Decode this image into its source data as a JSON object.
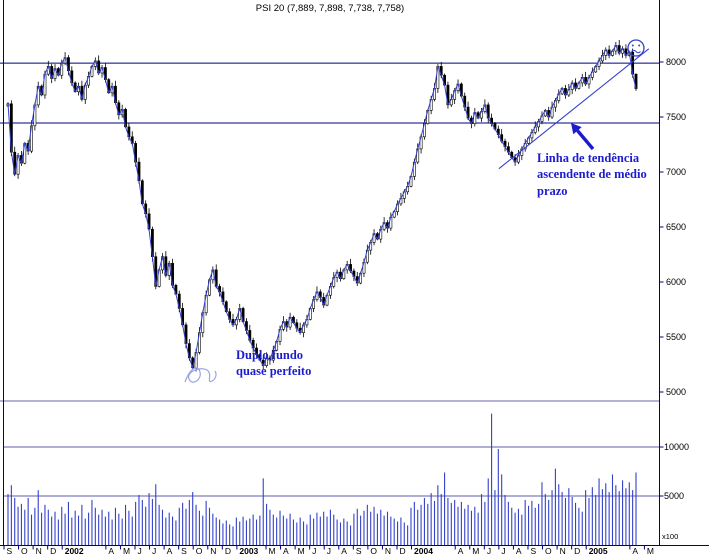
{
  "title": "PSI 20 (7,889, 7,898, 7,738, 7,758)",
  "colors": {
    "price_line": "#3341cc",
    "volume_bar": "#3341cc",
    "candle": "#000000",
    "axis": "#000080",
    "annotation": "#1c1ccd",
    "scribble": "#98a4e6",
    "label_text": "#000000",
    "background": "#ffffff"
  },
  "icons": {
    "top_right_stamp": "annoyed-face-icon",
    "trend_pointer": "up-left-arrow-icon",
    "double_bottom_mark": "scribble-mark"
  },
  "annotations": {
    "trend_label": {
      "text": "Linha de tendência ascendente de médio prazo"
    },
    "double_bottom_label": {
      "text": "Duplo fundo quase perfeito"
    }
  },
  "axes": {
    "price_ticks": [
      {
        "label": "8000",
        "value": 8000
      },
      {
        "label": "7500",
        "value": 7500
      },
      {
        "label": "7000",
        "value": 7000
      },
      {
        "label": "6500",
        "value": 6500
      },
      {
        "label": "6000",
        "value": 6000
      },
      {
        "label": "5500",
        "value": 5500
      },
      {
        "label": "5000",
        "value": 5000
      }
    ],
    "volume_ticks": [
      {
        "label": "10000",
        "value": 10000
      },
      {
        "label": "5000",
        "value": 5000
      }
    ],
    "volume_unit": "x100",
    "x_labels": [
      {
        "t": "S",
        "m": 0
      },
      {
        "t": "O",
        "m": 1
      },
      {
        "t": "N",
        "m": 2
      },
      {
        "t": "D",
        "m": 3
      },
      {
        "t": "2002",
        "m": 4,
        "b": true
      },
      {
        "t": "A",
        "m": 7
      },
      {
        "t": "M",
        "m": 8
      },
      {
        "t": "J",
        "m": 9
      },
      {
        "t": "J",
        "m": 10
      },
      {
        "t": "A",
        "m": 11
      },
      {
        "t": "S",
        "m": 12
      },
      {
        "t": "O",
        "m": 13
      },
      {
        "t": "N",
        "m": 14
      },
      {
        "t": "D",
        "m": 15
      },
      {
        "t": "2003",
        "m": 16,
        "b": true
      },
      {
        "t": "M",
        "m": 18
      },
      {
        "t": "A",
        "m": 19
      },
      {
        "t": "M",
        "m": 20
      },
      {
        "t": "J",
        "m": 21
      },
      {
        "t": "J",
        "m": 22
      },
      {
        "t": "A",
        "m": 23
      },
      {
        "t": "S",
        "m": 24
      },
      {
        "t": "O",
        "m": 25
      },
      {
        "t": "N",
        "m": 26
      },
      {
        "t": "D",
        "m": 27
      },
      {
        "t": "2004",
        "m": 28,
        "b": true
      },
      {
        "t": "A",
        "m": 31
      },
      {
        "t": "M",
        "m": 32
      },
      {
        "t": "J",
        "m": 33
      },
      {
        "t": "J",
        "m": 34
      },
      {
        "t": "A",
        "m": 35
      },
      {
        "t": "S",
        "m": 36
      },
      {
        "t": "O",
        "m": 37
      },
      {
        "t": "N",
        "m": 38
      },
      {
        "t": "D",
        "m": 39
      },
      {
        "t": "2005",
        "m": 40,
        "b": true
      },
      {
        "t": "A",
        "m": 43
      },
      {
        "t": "M",
        "m": 44
      }
    ]
  },
  "chart_data": {
    "type": "candlestick",
    "symbol": "PSI 20",
    "title": "PSI 20 (7,889, 7,898, 7,738, 7,758)",
    "timeframe": "weekly",
    "x_range": "Sep 2001 - Apr 2005",
    "price_ylim": [
      5000,
      8400
    ],
    "volume_ylim": [
      0,
      14000
    ],
    "volume_unit": "x100",
    "last_bar": {
      "open": 7889,
      "high": 7898,
      "low": 7738,
      "close": 7758
    },
    "first_open": 7600,
    "support_resistance_levels": [
      7990,
      7445
    ],
    "trendline": {
      "from_month": 34.0,
      "from_price": 7030,
      "to_month": 44.3,
      "to_price": 8120
    },
    "closes": [
      7620,
      7180,
      6980,
      7150,
      7080,
      7260,
      7190,
      7420,
      7610,
      7780,
      7700,
      7890,
      7960,
      7850,
      7940,
      7880,
      7990,
      8040,
      7920,
      7810,
      7730,
      7780,
      7660,
      7790,
      7870,
      7960,
      8010,
      7900,
      7950,
      7840,
      7720,
      7780,
      7630,
      7520,
      7570,
      7410,
      7320,
      7260,
      7090,
      6920,
      6710,
      6620,
      6480,
      6230,
      5960,
      6110,
      6230,
      6060,
      6170,
      5970,
      5890,
      5760,
      5610,
      5440,
      5310,
      5220,
      5360,
      5540,
      5720,
      5880,
      6020,
      6110,
      5960,
      5910,
      5820,
      5730,
      5660,
      5610,
      5660,
      5760,
      5640,
      5560,
      5470,
      5400,
      5340,
      5290,
      5240,
      5310,
      5290,
      5380,
      5460,
      5570,
      5640,
      5590,
      5680,
      5630,
      5580,
      5540,
      5610,
      5660,
      5760,
      5840,
      5910,
      5860,
      5790,
      5880,
      5960,
      6040,
      6090,
      6030,
      6110,
      6160,
      6100,
      6050,
      5990,
      6080,
      6180,
      6290,
      6360,
      6440,
      6390,
      6480,
      6540,
      6490,
      6590,
      6640,
      6710,
      6760,
      6820,
      6870,
      6960,
      7090,
      7210,
      7320,
      7440,
      7560,
      7660,
      7760,
      7960,
      7880,
      7790,
      7610,
      7660,
      7740,
      7800,
      7690,
      7590,
      7490,
      7440,
      7540,
      7490,
      7550,
      7610,
      7490,
      7440,
      7390,
      7340,
      7280,
      7230,
      7180,
      7130,
      7090,
      7150,
      7210,
      7260,
      7310,
      7360,
      7410,
      7460,
      7510,
      7560,
      7500,
      7590,
      7650,
      7710,
      7760,
      7700,
      7750,
      7810,
      7760,
      7810,
      7860,
      7800,
      7860,
      7910,
      7960,
      8010,
      8060,
      8110,
      8060,
      8100,
      8150,
      8080,
      8120,
      8060,
      8090,
      7890,
      7758
    ],
    "volumes": [
      5200,
      6100,
      4800,
      3900,
      4200,
      3600,
      4800,
      3100,
      3800,
      5600,
      3300,
      4100,
      3600,
      2900,
      3400,
      2600,
      3900,
      3200,
      4400,
      2800,
      3500,
      3000,
      4100,
      2700,
      3300,
      4600,
      3800,
      3100,
      3600,
      2900,
      3400,
      2600,
      3800,
      3200,
      2700,
      4100,
      3500,
      2900,
      4400,
      5100,
      4600,
      3900,
      5300,
      4700,
      6200,
      4100,
      3600,
      2800,
      3300,
      2900,
      2500,
      3800,
      4300,
      3700,
      4600,
      5400,
      4100,
      3500,
      3000,
      4500,
      3800,
      3200,
      2800,
      2600,
      2200,
      2500,
      2100,
      1900,
      2800,
      2400,
      2900,
      2500,
      2700,
      3100,
      2600,
      3000,
      6800,
      4200,
      3600,
      3100,
      2800,
      3500,
      3000,
      2700,
      3200,
      2600,
      2300,
      2800,
      2400,
      2100,
      3100,
      2700,
      3300,
      2900,
      3400,
      2900,
      3600,
      3100,
      2600,
      2300,
      2700,
      2400,
      2000,
      3200,
      3700,
      3000,
      3500,
      4100,
      3400,
      3900,
      3200,
      3600,
      3000,
      3400,
      2900,
      2700,
      2400,
      2800,
      2300,
      2000,
      3800,
      4400,
      3600,
      4100,
      4800,
      4200,
      5300,
      4500,
      6100,
      5200,
      7400,
      4800,
      4300,
      4600,
      3900,
      4400,
      3700,
      4100,
      3500,
      3900,
      3300,
      5200,
      4400,
      6800,
      13400,
      5600,
      9800,
      7200,
      5100,
      4400,
      3800,
      3300,
      3700,
      3100,
      4600,
      4000,
      4500,
      3800,
      4200,
      6400,
      5200,
      4600,
      5600,
      7800,
      6200,
      5400,
      4800,
      5800,
      4900,
      4300,
      3800,
      3400,
      5600,
      4800,
      5900,
      5100,
      6800,
      5700,
      6300,
      5400,
      7200,
      6100,
      5500,
      6600,
      5800,
      6400,
      5600,
      7400
    ]
  }
}
